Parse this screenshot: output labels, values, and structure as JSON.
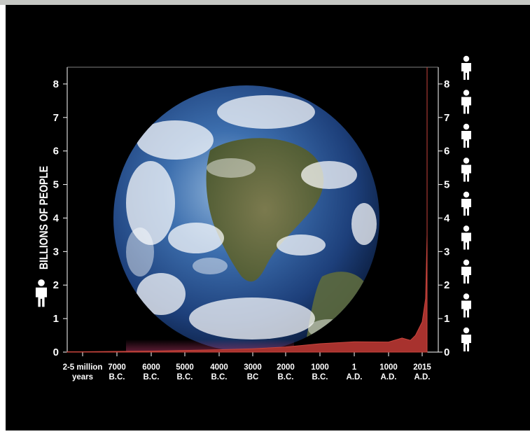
{
  "chart_data": {
    "type": "area",
    "ylabel": "BILLIONS OF PEOPLE",
    "ylim": [
      0,
      8.5
    ],
    "yticks": [
      0,
      1,
      2,
      3,
      4,
      5,
      6,
      7,
      8
    ],
    "x_categories": [
      [
        "2-5 million",
        "years"
      ],
      [
        "7000",
        "B.C."
      ],
      [
        "6000",
        "B.C."
      ],
      [
        "5000",
        "B.C."
      ],
      [
        "4000",
        "B.C."
      ],
      [
        "3000",
        "BC"
      ],
      [
        "2000",
        "B.C."
      ],
      [
        "1000",
        "B.C."
      ],
      [
        "1",
        "A.D."
      ],
      [
        "1000",
        "A.D."
      ],
      [
        "2015",
        "A.D."
      ]
    ],
    "series": [
      {
        "color": "#a8322e",
        "points": [
          {
            "x": -1.0,
            "y": 0.01
          },
          {
            "x": 0.0,
            "y": 0.01
          },
          {
            "x": 1.0,
            "y": 0.02
          },
          {
            "x": 2.0,
            "y": 0.03
          },
          {
            "x": 3.0,
            "y": 0.05
          },
          {
            "x": 4.0,
            "y": 0.07
          },
          {
            "x": 5.0,
            "y": 0.1
          },
          {
            "x": 6.0,
            "y": 0.15
          },
          {
            "x": 7.0,
            "y": 0.25
          },
          {
            "x": 8.0,
            "y": 0.31
          },
          {
            "x": 9.0,
            "y": 0.3
          },
          {
            "x": 9.4,
            "y": 0.42
          },
          {
            "x": 9.65,
            "y": 0.35
          },
          {
            "x": 9.8,
            "y": 0.5
          },
          {
            "x": 10.0,
            "y": 0.9
          },
          {
            "x": 10.1,
            "y": 1.6
          },
          {
            "x": 10.2,
            "y": 3.5
          },
          {
            "x": 10.25,
            "y": 6.0
          },
          {
            "x": 10.3,
            "y": 8.5
          }
        ]
      }
    ],
    "icons": {
      "person": "person-icon",
      "count_right_axis": 9
    }
  }
}
